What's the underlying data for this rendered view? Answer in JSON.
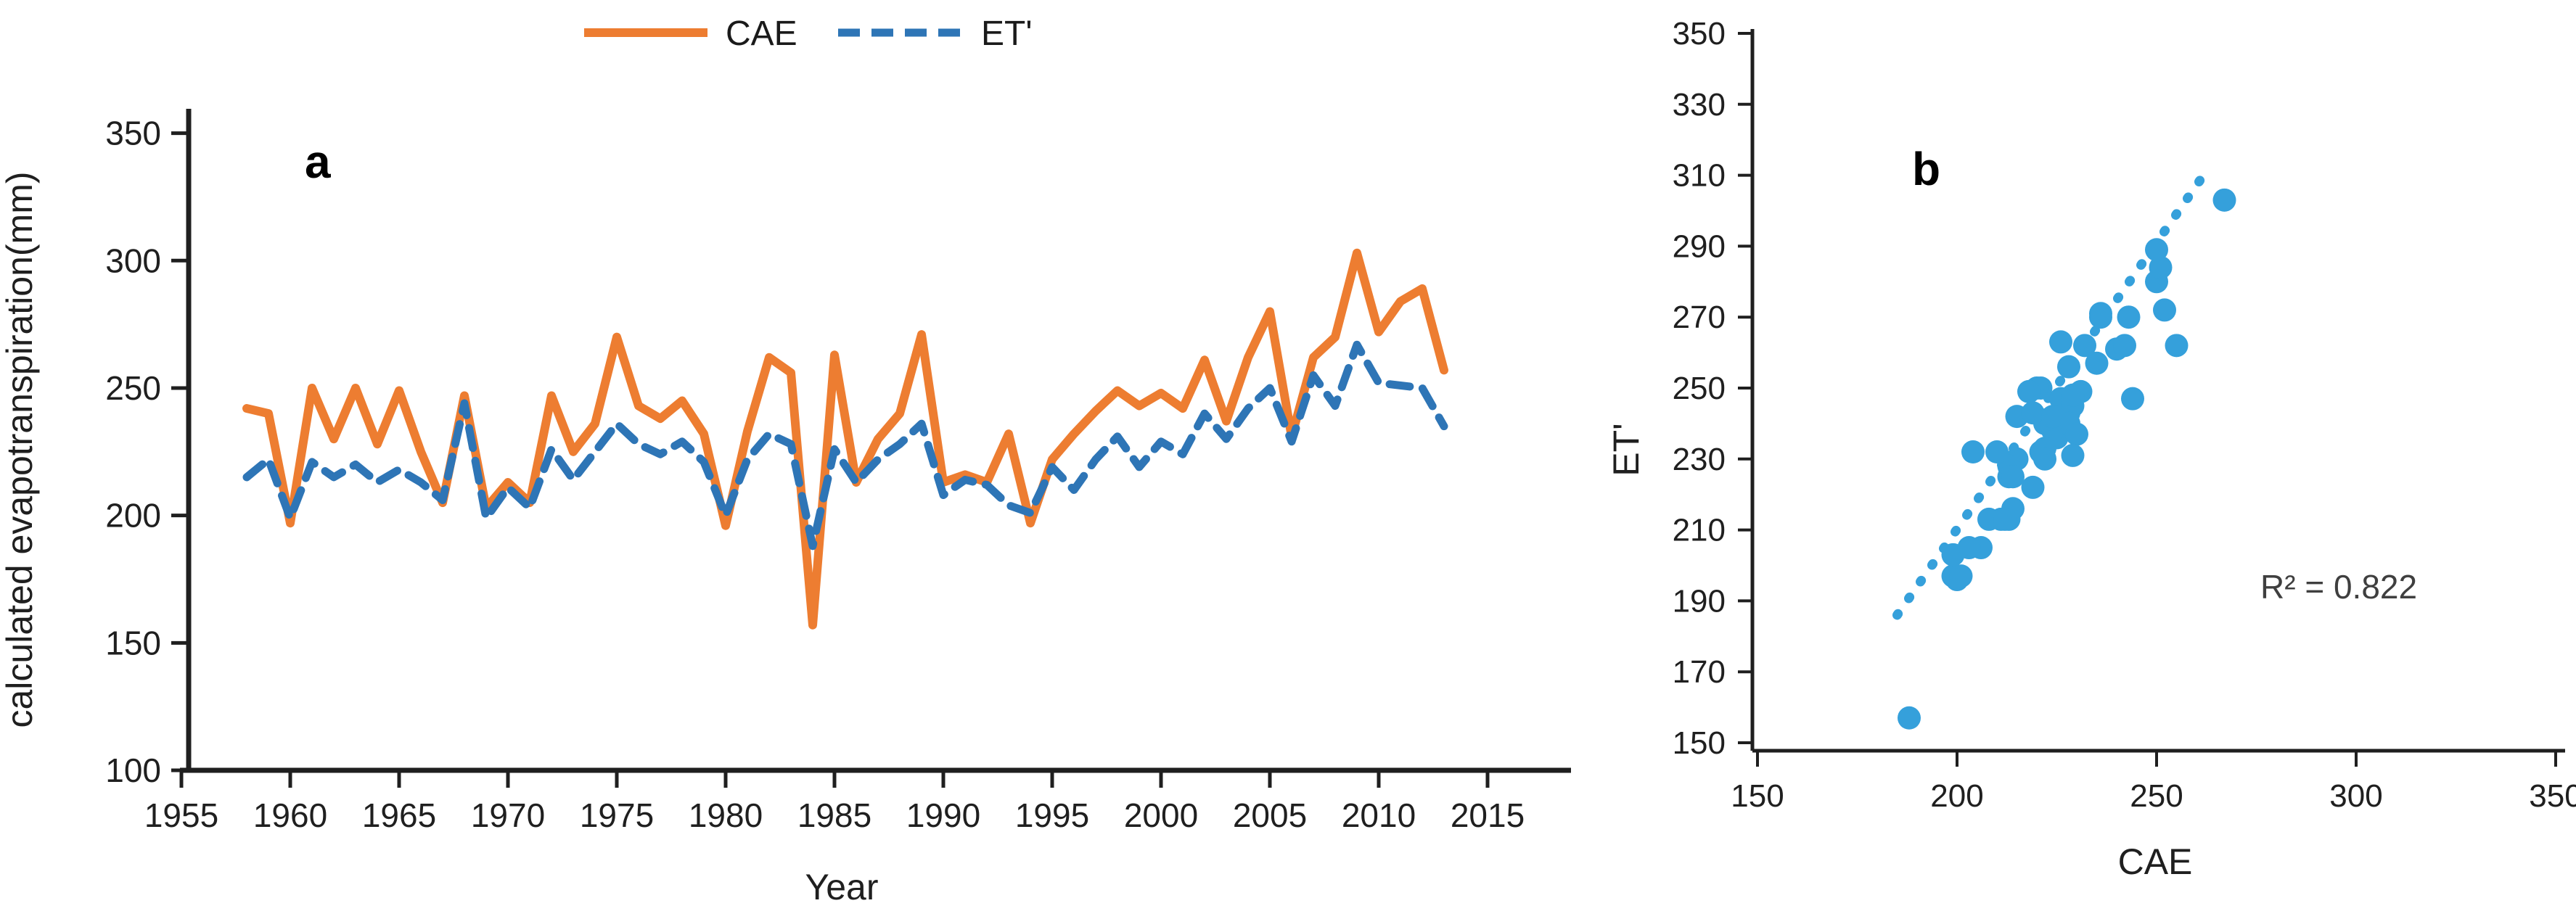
{
  "figure": {
    "panel_a_label": "a",
    "panel_b_label": "b",
    "r2_label": "R² = 0.822"
  },
  "chart_data": [
    {
      "type": "line",
      "panel": "a",
      "title": "",
      "xlabel": "Year",
      "ylabel": "calculated evapotranspiration(mm)",
      "xlim": [
        1955,
        2015
      ],
      "ylim": [
        100,
        350
      ],
      "xticks": [
        1955,
        1960,
        1965,
        1970,
        1975,
        1980,
        1985,
        1990,
        1995,
        2000,
        2005,
        2010,
        2015
      ],
      "yticks": [
        350,
        300,
        250,
        200,
        150,
        100
      ],
      "grid": false,
      "legend_position": "top-center",
      "x": [
        1958,
        1959,
        1960,
        1961,
        1962,
        1963,
        1964,
        1965,
        1966,
        1967,
        1968,
        1969,
        1970,
        1971,
        1972,
        1973,
        1974,
        1975,
        1976,
        1977,
        1978,
        1979,
        1980,
        1981,
        1982,
        1983,
        1984,
        1985,
        1986,
        1987,
        1988,
        1989,
        1990,
        1991,
        1992,
        1993,
        1994,
        1995,
        1996,
        1997,
        1998,
        1999,
        2000,
        2001,
        2002,
        2003,
        2004,
        2005,
        2006,
        2007,
        2008,
        2009,
        2010,
        2011,
        2012,
        2013
      ],
      "series": [
        {
          "name": "CAE",
          "color": "#ED7D31",
          "style": "solid",
          "values": [
            242,
            240,
            197,
            250,
            230,
            250,
            228,
            249,
            225,
            205,
            247,
            203,
            213,
            205,
            247,
            225,
            236,
            270,
            243,
            238,
            245,
            232,
            196,
            233,
            262,
            256,
            157,
            263,
            213,
            230,
            240,
            271,
            213,
            216,
            213,
            232,
            197,
            222,
            232,
            241,
            249,
            243,
            248,
            242,
            261,
            237,
            262,
            280,
            231,
            262,
            270,
            303,
            272,
            284,
            289,
            257
          ]
        },
        {
          "name": "ET'",
          "color": "#2E75B6",
          "style": "dashed",
          "values": [
            215,
            222,
            199,
            221,
            215,
            220,
            213,
            218,
            213,
            206,
            244,
            199,
            211,
            203,
            226,
            214,
            225,
            236,
            228,
            224,
            229,
            221,
            200,
            222,
            232,
            228,
            188,
            226,
            213,
            222,
            228,
            236,
            208,
            214,
            212,
            204,
            201,
            219,
            210,
            222,
            231,
            219,
            229,
            224,
            240,
            230,
            242,
            250,
            229,
            255,
            243,
            267,
            252,
            251,
            250,
            235
          ]
        }
      ]
    },
    {
      "type": "scatter",
      "panel": "b",
      "title": "",
      "xlabel": "CAE",
      "ylabel": "ET'",
      "xlim": [
        150,
        350
      ],
      "ylim": [
        150,
        350
      ],
      "xticks": [
        150,
        200,
        250,
        300,
        350
      ],
      "yticks": [
        350,
        330,
        310,
        290,
        270,
        250,
        230,
        210,
        190,
        170,
        150
      ],
      "grid": false,
      "marker_color": "#35A0DB",
      "annotation": "R² = 0.822",
      "points": [
        [
          215,
          242
        ],
        [
          222,
          240
        ],
        [
          199,
          197
        ],
        [
          221,
          250
        ],
        [
          215,
          230
        ],
        [
          220,
          250
        ],
        [
          213,
          228
        ],
        [
          218,
          249
        ],
        [
          213,
          225
        ],
        [
          206,
          205
        ],
        [
          244,
          247
        ],
        [
          199,
          203
        ],
        [
          211,
          213
        ],
        [
          203,
          205
        ],
        [
          226,
          247
        ],
        [
          214,
          225
        ],
        [
          225,
          236
        ],
        [
          236,
          270
        ],
        [
          228,
          243
        ],
        [
          224,
          238
        ],
        [
          229,
          245
        ],
        [
          221,
          232
        ],
        [
          200,
          196
        ],
        [
          222,
          233
        ],
        [
          232,
          262
        ],
        [
          228,
          256
        ],
        [
          188,
          157
        ],
        [
          226,
          263
        ],
        [
          213,
          213
        ],
        [
          222,
          230
        ],
        [
          228,
          240
        ],
        [
          236,
          271
        ],
        [
          208,
          213
        ],
        [
          214,
          216
        ],
        [
          212,
          213
        ],
        [
          204,
          232
        ],
        [
          201,
          197
        ],
        [
          219,
          222
        ],
        [
          210,
          232
        ],
        [
          222,
          241
        ],
        [
          231,
          249
        ],
        [
          219,
          243
        ],
        [
          229,
          248
        ],
        [
          224,
          242
        ],
        [
          240,
          261
        ],
        [
          230,
          237
        ],
        [
          242,
          262
        ],
        [
          250,
          280
        ],
        [
          229,
          231
        ],
        [
          255,
          262
        ],
        [
          243,
          270
        ],
        [
          267,
          303
        ],
        [
          252,
          272
        ],
        [
          251,
          284
        ],
        [
          250,
          289
        ],
        [
          235,
          257
        ]
      ],
      "trendline": {
        "style": "dotted",
        "color": "#35A0DB",
        "x1": 185,
        "y1": 186,
        "x2": 263,
        "y2": 312
      }
    }
  ]
}
